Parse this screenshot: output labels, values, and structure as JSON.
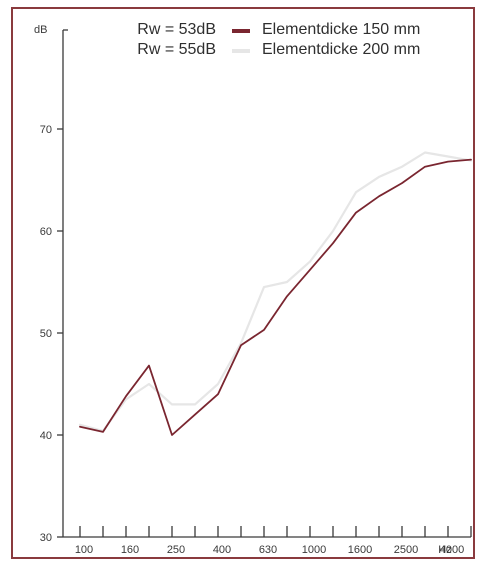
{
  "chart_data": {
    "type": "line",
    "y_unit_label": "dB",
    "x_unit_label": "Hz",
    "ylim": [
      30,
      75
    ],
    "y_ticks": [
      30,
      40,
      50,
      60,
      70
    ],
    "x_tick_labels": [
      "100",
      "160",
      "250",
      "400",
      "630",
      "1000",
      "1600",
      "2500",
      "4000"
    ],
    "x_categories": [
      "100",
      "125",
      "160",
      "200",
      "250",
      "315",
      "400",
      "500",
      "630",
      "800",
      "1000",
      "1250",
      "1600",
      "2000",
      "2500",
      "3150",
      "4000",
      "5000"
    ],
    "grid": false,
    "legend_position": "top-right",
    "legend": [
      {
        "rating": "Rw = 53dB",
        "label": "Elementdicke 150 mm",
        "color": "#7a2630"
      },
      {
        "rating": "Rw = 55dB",
        "label": "Elementdicke 200 mm",
        "color": "#e6e6e6"
      }
    ],
    "series": [
      {
        "name": "Elementdicke 150 mm",
        "color": "#7a2630",
        "values": [
          40.8,
          40.3,
          43.8,
          46.8,
          40.0,
          42.0,
          44.0,
          48.8,
          50.3,
          53.6,
          56.2,
          58.8,
          61.8,
          63.4,
          64.7,
          66.3,
          66.8,
          67.0
        ]
      },
      {
        "name": "Elementdicke 200 mm",
        "color": "#e6e6e6",
        "values": [
          41.0,
          40.4,
          43.5,
          45.0,
          43.0,
          43.0,
          45.0,
          49.0,
          54.5,
          55.0,
          57.0,
          60.0,
          63.8,
          65.3,
          66.3,
          67.7,
          67.3,
          66.9
        ]
      }
    ]
  }
}
